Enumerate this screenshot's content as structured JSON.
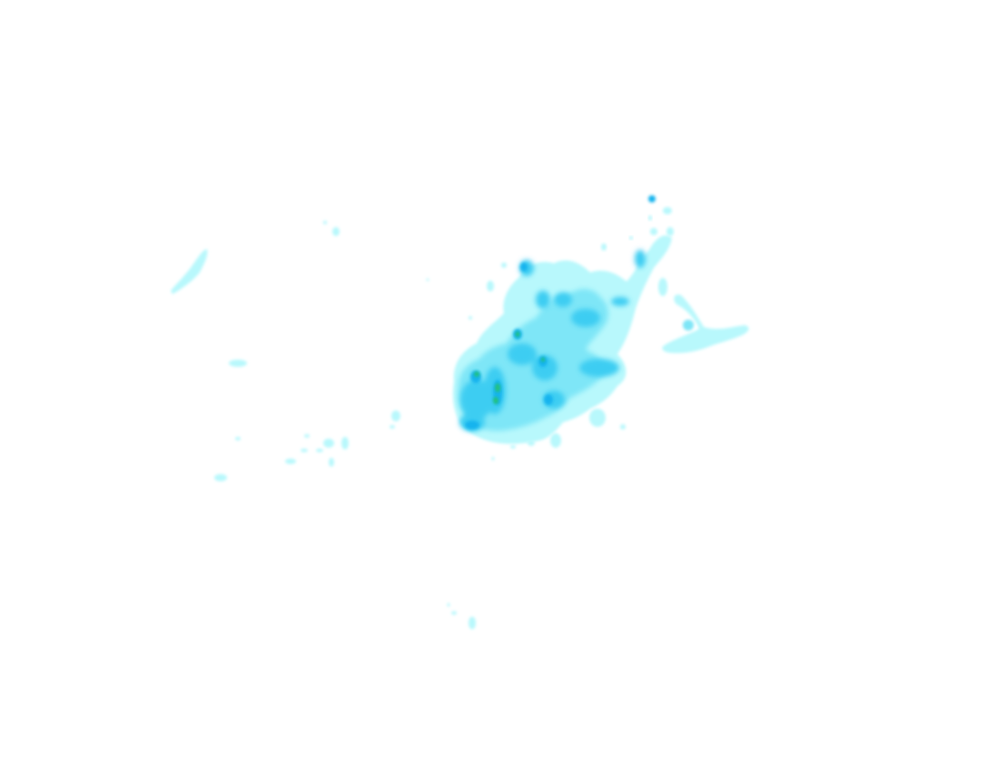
{
  "overlay": {
    "kind": "precipitation-radar",
    "background": "#ffffff",
    "intensity_colors": {
      "very_light": "#b8f8fc",
      "light": "#7ee6f7",
      "moderate": "#3ccdf2",
      "heavy": "#16b4ee",
      "very_heavy": "#22c27c"
    }
  }
}
